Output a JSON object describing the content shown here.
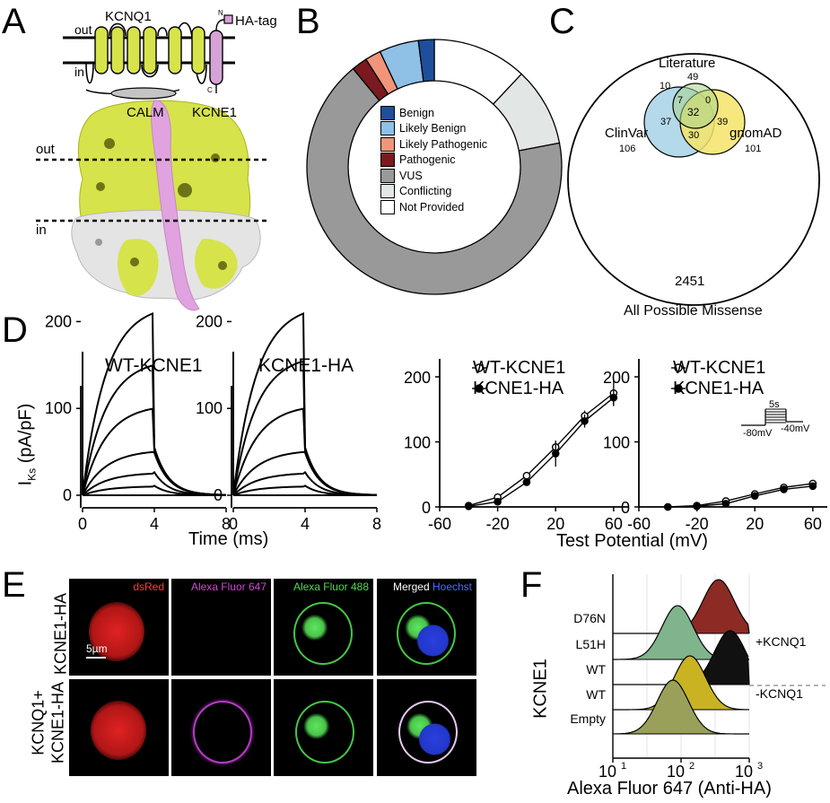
{
  "panels": {
    "A": {
      "letter": "A",
      "labels": {
        "out": "out",
        "in": "in",
        "kcnq1": "KCNQ1",
        "ha_tag": "HA-tag",
        "calm": "CALM",
        "kcne1": "KCNE1",
        "n": "N",
        "c": "C"
      },
      "structure_labels": {
        "out": "out",
        "in": "in"
      }
    },
    "B": {
      "letter": "B",
      "legend": [
        {
          "label": "Benign",
          "color": "#1f4e9c"
        },
        {
          "label": "Likely Benign",
          "color": "#8fc0e6"
        },
        {
          "label": "Likely Pathogenic",
          "color": "#f0957a"
        },
        {
          "label": "Pathogenic",
          "color": "#7a1a1e"
        },
        {
          "label": "VUS",
          "color": "#999999"
        },
        {
          "label": "Conflicting",
          "color": "#e2e6e4"
        },
        {
          "label": "Not Provided",
          "color": "#ffffff"
        }
      ]
    },
    "C": {
      "letter": "C",
      "literature": "Literature",
      "literature_n": "49",
      "clinvar": "ClinVar",
      "clinvar_n": "106",
      "gnomad": "gnomAD",
      "gnomad_n": "101",
      "n10": "10",
      "n7": "7",
      "n0": "0",
      "n32": "32",
      "n37": "37",
      "n39": "39",
      "n30": "30",
      "total": "2451",
      "caption": "All Possible Missense"
    },
    "D": {
      "letter": "D",
      "trace_left_title": "WT-KCNE1",
      "trace_right_title": "KCNE1-HA",
      "ylabel_main": "I",
      "ylabel_sub": "Ks",
      "ylabel_units": " (pA/pF)",
      "trace_xlabel": "Time (ms)",
      "iv_xlabel": "Test Potential (mV)",
      "legend_wt": "WT-KCNE1",
      "legend_ha": "KCNE1-HA",
      "protocol": {
        "duration": "5s",
        "v_hold": "-80mV",
        "v_tail": "-40mV"
      }
    },
    "E": {
      "letter": "E",
      "channels": [
        {
          "text": "dsRed",
          "color": "#ff3b3b"
        },
        {
          "text": "Alexa Fluor 647",
          "color": "#d247d2"
        },
        {
          "text": "Alexa Fluor 488",
          "color": "#4ddb4d"
        },
        {
          "text": "Merged",
          "color": "#ffffff"
        },
        {
          "text": "Hoechst",
          "color": "#4a6cff"
        }
      ],
      "row1": "KCNE1-HA",
      "row2a": "KCNQ1+",
      "row2b": "KCNE1-HA",
      "scalebar": "5µm"
    },
    "F": {
      "letter": "F",
      "ylabel": "KCNE1",
      "rows": [
        {
          "label": "D76N",
          "color": "#8c2a24"
        },
        {
          "label": "L51H",
          "color": "#7fb48d"
        },
        {
          "label": "WT",
          "color": "#111111"
        },
        {
          "label": "WT",
          "color": "#c9b322"
        },
        {
          "label": "Empty",
          "color": "#9aa05a"
        }
      ],
      "plus": "+KCNQ1",
      "minus": "-KCNQ1",
      "xlabel": "Alexa Fluor 647 (Anti-HA)",
      "ticks": [
        {
          "base": "10",
          "exp": "1"
        },
        {
          "base": "10",
          "exp": "2"
        },
        {
          "base": "10",
          "exp": "3"
        }
      ]
    }
  },
  "chart_data": [
    {
      "type": "pie",
      "panel": "B",
      "categories": [
        "Benign",
        "Likely Benign",
        "Likely Pathogenic",
        "Pathogenic",
        "VUS",
        "Conflicting",
        "Not Provided"
      ],
      "values": [
        2,
        5,
        2,
        2,
        67,
        10,
        12
      ]
    },
    {
      "type": "line",
      "panel": "D-trace-WT",
      "title": "WT-KCNE1",
      "xlabel": "Time (ms)",
      "xlim": [
        0,
        8
      ],
      "ylim": [
        0,
        250
      ],
      "xticks": [
        0,
        4,
        8
      ],
      "yticks": [
        0,
        100,
        200
      ],
      "step_end_currents": [
        0,
        10,
        25,
        50,
        100,
        150,
        210
      ]
    },
    {
      "type": "line",
      "panel": "D-trace-HA",
      "title": "KCNE1-HA",
      "xlabel": "Time (ms)",
      "xlim": [
        0,
        8
      ],
      "ylim": [
        0,
        250
      ],
      "xticks": [
        0,
        4,
        8
      ],
      "yticks": [
        0,
        100,
        200
      ],
      "step_end_currents": [
        0,
        10,
        25,
        50,
        100,
        155,
        210
      ]
    },
    {
      "type": "line",
      "panel": "D-IV-ctrl",
      "xlim": [
        -60,
        70
      ],
      "ylim": [
        0,
        230
      ],
      "xticks": [
        -60,
        -20,
        20,
        60
      ],
      "yticks": [
        0,
        100,
        200
      ],
      "series": [
        {
          "name": "WT-KCNE1",
          "x": [
            -40,
            -20,
            0,
            20,
            40,
            60
          ],
          "y": [
            2,
            15,
            48,
            92,
            140,
            175
          ],
          "err": [
            2,
            3,
            5,
            6,
            8,
            20
          ]
        },
        {
          "name": "KCNE1-HA",
          "x": [
            -40,
            -20,
            0,
            20,
            40,
            60
          ],
          "y": [
            1,
            8,
            38,
            82,
            132,
            168
          ],
          "err": [
            2,
            3,
            5,
            20,
            10,
            12
          ]
        }
      ]
    },
    {
      "type": "line",
      "panel": "D-IV-2",
      "xlim": [
        -60,
        70
      ],
      "ylim": [
        0,
        230
      ],
      "xticks": [
        -60,
        -20,
        20,
        60
      ],
      "yticks": [
        0,
        100,
        200
      ],
      "series": [
        {
          "name": "WT-KCNE1",
          "x": [
            -40,
            -20,
            0,
            20,
            40,
            60
          ],
          "y": [
            0,
            2,
            9,
            20,
            30,
            36
          ],
          "err": [
            1,
            1,
            3,
            3,
            3,
            4
          ]
        },
        {
          "name": "KCNE1-HA",
          "x": [
            -40,
            -20,
            0,
            20,
            40,
            60
          ],
          "y": [
            0,
            1,
            5,
            17,
            27,
            32
          ],
          "err": [
            1,
            1,
            2,
            3,
            3,
            3
          ]
        }
      ]
    },
    {
      "type": "area",
      "panel": "F",
      "xlabel": "Alexa Fluor 647 (Anti-HA)",
      "xscale": "log",
      "xlim": [
        10,
        1000
      ],
      "series": [
        {
          "name": "D76N",
          "peak_log10": 2.55
        },
        {
          "name": "L51H",
          "peak_log10": 1.95
        },
        {
          "name": "WT",
          "peak_log10": 2.72
        },
        {
          "name": "WT",
          "peak_log10": 2.13
        },
        {
          "name": "Empty",
          "peak_log10": 1.88
        }
      ]
    }
  ]
}
